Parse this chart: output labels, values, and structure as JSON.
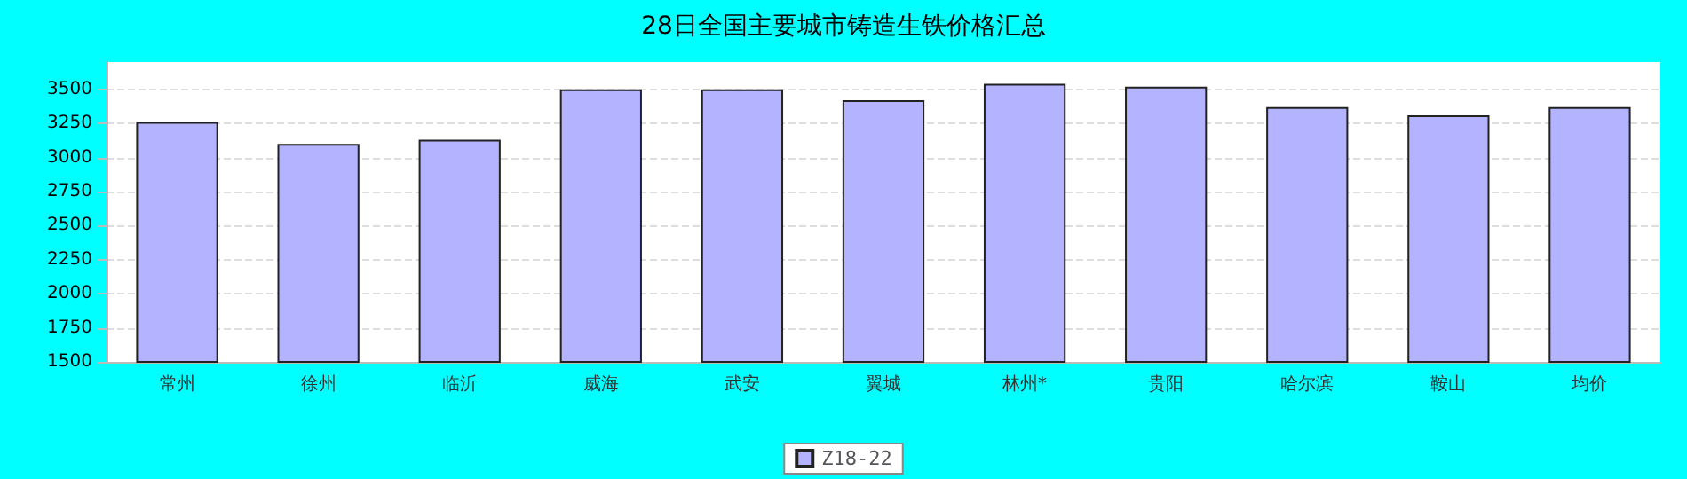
{
  "chart_data": {
    "type": "bar",
    "title": "28日全国主要城市铸造生铁价格汇总",
    "categories": [
      "常州",
      "徐州",
      "临沂",
      "威海",
      "武安",
      "翼城",
      "林州*",
      "贵阳",
      "哈尔滨",
      "鞍山",
      "均价"
    ],
    "series": [
      {
        "name": "Z18-22",
        "color": "#b3b3ff",
        "values": [
          3260,
          3100,
          3130,
          3500,
          3500,
          3420,
          3540,
          3520,
          3370,
          3310,
          3370
        ]
      }
    ],
    "ylim": [
      1500,
      3700
    ],
    "yticks": [
      1500,
      1750,
      2000,
      2250,
      2500,
      2750,
      3000,
      3250,
      3500
    ],
    "grid": "y",
    "legend": "bottom"
  }
}
